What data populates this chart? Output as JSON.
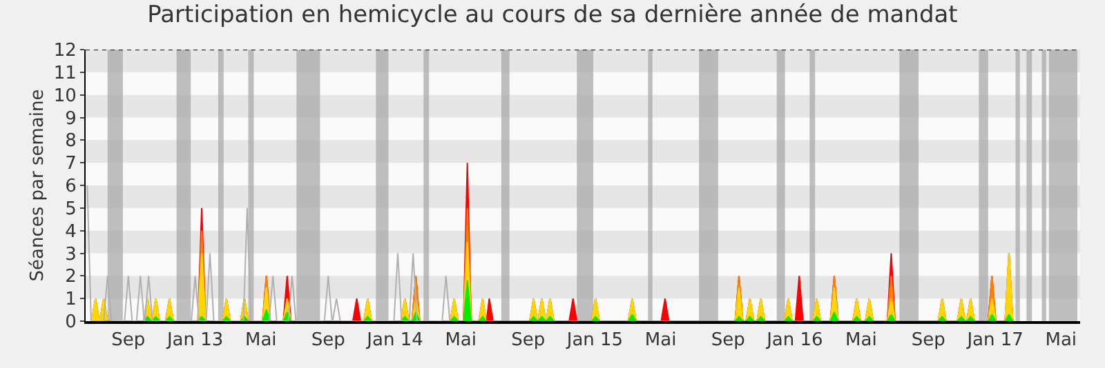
{
  "chart_data": {
    "type": "area",
    "title": "Participation en hemicycle au cours de sa dernière année de mandat",
    "ylabel": "Séances par semaine",
    "x": [
      "2012-06-26",
      "2012-07-03",
      "2012-07-10",
      "2012-07-11",
      "2012-07-18",
      "2012-07-25",
      "2012-09-29",
      "2012-10-06",
      "2012-10-13",
      "2012-10-14",
      "2012-10-21",
      "2012-10-28",
      "2012-11-08",
      "2012-11-15",
      "2012-11-22",
      "2013-01-06",
      "2013-01-13",
      "2013-01-20",
      "2013-02-20",
      "2013-02-27",
      "2013-03-06",
      "2013-03-25",
      "2013-04-01",
      "2013-04-08",
      "2013-05-04",
      "2013-05-11",
      "2013-05-18",
      "2013-06-11",
      "2013-06-18",
      "2013-06-25",
      "2013-10-16",
      "2013-10-23",
      "2013-10-30",
      "2013-11-05",
      "2013-11-12",
      "2013-11-19",
      "2014-01-12",
      "2014-01-19",
      "2014-01-26",
      "2014-02-01",
      "2014-02-08",
      "2014-02-15",
      "2014-04-12",
      "2014-04-19",
      "2014-04-26",
      "2014-05-06",
      "2014-05-13",
      "2014-05-20",
      "2014-06-03",
      "2014-06-10",
      "2014-06-16",
      "2014-06-17",
      "2014-06-22",
      "2014-06-29",
      "2014-09-04",
      "2014-09-11",
      "2014-09-18",
      "2014-09-19",
      "2014-09-26",
      "2014-10-03",
      "2014-10-04",
      "2014-10-11",
      "2014-10-18",
      "2014-11-15",
      "2014-11-22",
      "2014-11-29",
      "2014-12-26",
      "2015-01-02",
      "2015-01-09",
      "2015-03-03",
      "2015-03-10",
      "2015-03-17",
      "2015-05-02",
      "2015-05-09",
      "2015-05-16",
      "2015-09-14",
      "2015-09-21",
      "2015-09-28",
      "2015-10-04",
      "2015-10-11",
      "2015-10-18",
      "2015-10-24",
      "2015-10-31",
      "2015-11-07",
      "2015-12-13",
      "2015-12-20",
      "2015-12-27",
      "2016-01-02",
      "2016-01-09",
      "2016-01-16",
      "2016-02-03",
      "2016-02-10",
      "2016-02-17",
      "2016-03-06",
      "2016-03-13",
      "2016-03-20",
      "2016-04-16",
      "2016-04-23",
      "2016-04-30",
      "2016-05-09",
      "2016-05-16",
      "2016-05-23",
      "2016-06-18",
      "2016-06-25",
      "2016-07-02",
      "2016-09-19",
      "2016-09-26",
      "2016-10-03",
      "2016-10-24",
      "2016-10-31",
      "2016-11-07",
      "2016-11-10",
      "2016-11-17",
      "2016-11-24",
      "2016-12-19",
      "2016-12-26",
      "2017-01-02",
      "2017-01-19",
      "2017-01-26",
      "2017-02-02"
    ],
    "series": [
      {
        "color": "#ff0000",
        "values": [
          0,
          1,
          0,
          0,
          1,
          0,
          0,
          1,
          0,
          0,
          1,
          0,
          0,
          1,
          0,
          0,
          5,
          0,
          0,
          1,
          0,
          0,
          1,
          0,
          0,
          2,
          0,
          0,
          2,
          0,
          0,
          1,
          0,
          0,
          1,
          0,
          0,
          1,
          0,
          0,
          2,
          0,
          0,
          1,
          0,
          0,
          7,
          0,
          0,
          1,
          0,
          0,
          1,
          0,
          0,
          1,
          0,
          0,
          1,
          0,
          0,
          1,
          0,
          0,
          1,
          0,
          0,
          1,
          0,
          0,
          1,
          0,
          0,
          1,
          0,
          0,
          2,
          0,
          0,
          1,
          0,
          0,
          1,
          0,
          0,
          1,
          0,
          0,
          2,
          0,
          0,
          1,
          0,
          0,
          2,
          0,
          0,
          1,
          0,
          0,
          1,
          0,
          0,
          3,
          0,
          0,
          1,
          0,
          0,
          1,
          0,
          0,
          1,
          0,
          0,
          2,
          0,
          0,
          3,
          0
        ]
      },
      {
        "color": "#ff8000",
        "values": [
          0,
          1,
          0,
          0,
          1,
          0,
          0,
          1,
          0,
          0,
          1,
          0,
          0,
          1,
          0,
          0,
          4,
          0,
          0,
          1,
          0,
          0,
          1,
          0,
          0,
          2,
          0,
          0,
          1,
          0,
          0,
          0,
          0,
          0,
          1,
          0,
          0,
          1,
          0,
          0,
          2,
          0,
          0,
          1,
          0,
          0,
          5,
          0,
          0,
          1,
          0,
          0,
          0,
          0,
          0,
          1,
          0,
          0,
          1,
          0,
          0,
          1,
          0,
          0,
          0,
          0,
          0,
          1,
          0,
          0,
          1,
          0,
          0,
          0,
          0,
          0,
          2,
          0,
          0,
          1,
          0,
          0,
          1,
          0,
          0,
          1,
          0,
          0,
          0,
          0,
          0,
          1,
          0,
          0,
          2,
          0,
          0,
          1,
          0,
          0,
          1,
          0,
          0,
          2,
          0,
          0,
          1,
          0,
          0,
          1,
          0,
          0,
          1,
          0,
          0,
          2,
          0,
          0,
          3,
          0
        ]
      },
      {
        "color": "#ffd700",
        "values": [
          0,
          1,
          0,
          0,
          1,
          0,
          0,
          1,
          0,
          0,
          1,
          0,
          0,
          1,
          0,
          0,
          3,
          0,
          0,
          1,
          0,
          0,
          1,
          0,
          0,
          1.5,
          0,
          0,
          1,
          0,
          0,
          0,
          0,
          0,
          1,
          0,
          0,
          1,
          0,
          0,
          1,
          0,
          0,
          1,
          0,
          0,
          3.5,
          0,
          0,
          1,
          0,
          0,
          0,
          0,
          0,
          1,
          0,
          0,
          1,
          0,
          0,
          1,
          0,
          0,
          0,
          0,
          0,
          1,
          0,
          0,
          1,
          0,
          0,
          0,
          0,
          0,
          1.5,
          0,
          0,
          1,
          0,
          0,
          1,
          0,
          0,
          1,
          0,
          0,
          0,
          0,
          0,
          1,
          0,
          0,
          1.5,
          0,
          0,
          1,
          0,
          0,
          1,
          0,
          0,
          1,
          0,
          0,
          1,
          0,
          0,
          1,
          0,
          0,
          1,
          0,
          0,
          1,
          0,
          0,
          3,
          0
        ]
      },
      {
        "color": "#00ee00",
        "values": [
          0,
          0,
          0,
          0,
          0,
          0,
          0,
          0.2,
          0,
          0,
          0.2,
          0,
          0,
          0.2,
          0,
          0,
          0.2,
          0,
          0,
          0.2,
          0,
          0,
          0.2,
          0,
          0,
          0.5,
          0,
          0,
          0.4,
          0,
          0,
          0,
          0,
          0,
          0.2,
          0,
          0,
          0.2,
          0,
          0,
          0.4,
          0,
          0,
          0.2,
          0,
          0,
          1.8,
          0,
          0,
          0.2,
          0,
          0,
          0,
          0,
          0,
          0.2,
          0,
          0,
          0.2,
          0,
          0,
          0.2,
          0,
          0,
          0,
          0,
          0,
          0.2,
          0,
          0,
          0.3,
          0,
          0,
          0,
          0,
          0,
          0.2,
          0,
          0,
          0.2,
          0,
          0,
          0.2,
          0,
          0,
          0.2,
          0,
          0,
          0,
          0,
          0,
          0.2,
          0,
          0,
          0.4,
          0,
          0,
          0.2,
          0,
          0,
          0.2,
          0,
          0,
          0.3,
          0,
          0,
          0.2,
          0,
          0,
          0.2,
          0,
          0,
          0.2,
          0,
          0,
          0.3,
          0,
          0,
          0.3,
          0
        ]
      },
      {
        "type": "line",
        "color": "#b0b0b0",
        "x": [
          "2012-06-18",
          "2012-06-25",
          "2012-07-18",
          "2012-07-25",
          "2012-08-01",
          "2012-08-25",
          "2012-09-01",
          "2012-09-08",
          "2012-09-16",
          "2012-09-23",
          "2012-09-30",
          "2012-10-01",
          "2012-10-08",
          "2012-10-15",
          "2012-12-25",
          "2013-01-01",
          "2013-01-08",
          "2013-01-21",
          "2013-01-28",
          "2013-02-04",
          "2013-03-30",
          "2013-04-06",
          "2013-04-13",
          "2013-05-16",
          "2013-05-23",
          "2013-05-30",
          "2013-06-20",
          "2013-06-27",
          "2013-07-04",
          "2013-08-25",
          "2013-09-01",
          "2013-09-08",
          "2013-09-09",
          "2013-09-16",
          "2013-09-23",
          "2013-12-30",
          "2014-01-06",
          "2014-01-13",
          "2014-01-27",
          "2014-02-03",
          "2014-02-10",
          "2014-03-28",
          "2014-04-04",
          "2014-04-11"
        ],
        "values": [
          6,
          0,
          0,
          2,
          0,
          0,
          2,
          0,
          0,
          2,
          0,
          0,
          2,
          0,
          0,
          2,
          0,
          0,
          3,
          0,
          0,
          5,
          0,
          0,
          2,
          0,
          0,
          2,
          0,
          0,
          2,
          0,
          0,
          1,
          0,
          0,
          3,
          0,
          0,
          3,
          0,
          0,
          2,
          0
        ]
      }
    ],
    "xlim": [
      "2012-06-15",
      "2017-06-05"
    ],
    "xticks": [
      {
        "value": "2012-09-01",
        "label": "Sep"
      },
      {
        "value": "2013-01-01",
        "label": "Jan 13"
      },
      {
        "value": "2013-05-01",
        "label": "Mai"
      },
      {
        "value": "2013-09-01",
        "label": "Sep"
      },
      {
        "value": "2014-01-01",
        "label": "Jan 14"
      },
      {
        "value": "2014-05-01",
        "label": "Mai"
      },
      {
        "value": "2014-09-01",
        "label": "Sep"
      },
      {
        "value": "2015-01-01",
        "label": "Jan 15"
      },
      {
        "value": "2015-05-01",
        "label": "Mai"
      },
      {
        "value": "2015-09-01",
        "label": "Sep"
      },
      {
        "value": "2016-01-01",
        "label": "Jan 16"
      },
      {
        "value": "2016-05-01",
        "label": "Mai"
      },
      {
        "value": "2016-09-01",
        "label": "Sep"
      },
      {
        "value": "2017-01-01",
        "label": "Jan 17"
      },
      {
        "value": "2017-05-01",
        "label": "Mai"
      }
    ],
    "ylim": [
      0,
      12
    ],
    "yticks": [
      0,
      1,
      2,
      3,
      4,
      5,
      6,
      7,
      8,
      9,
      10,
      11,
      12
    ],
    "grid": false,
    "legend": false,
    "ref_lines": [
      {
        "axis": "y",
        "value": 12,
        "color": "#000000",
        "line_style": "dotted"
      }
    ],
    "bands": [
      {
        "axis": "y",
        "from": 1,
        "to": 2,
        "color": "#e6e6e6"
      },
      {
        "axis": "y",
        "from": 3,
        "to": 4,
        "color": "#e6e6e6"
      },
      {
        "axis": "y",
        "from": 5,
        "to": 6,
        "color": "#e6e6e6"
      },
      {
        "axis": "y",
        "from": 7,
        "to": 8,
        "color": "#e6e6e6"
      },
      {
        "axis": "y",
        "from": 9,
        "to": 10,
        "color": "#e6e6e6"
      },
      {
        "axis": "y",
        "from": 11,
        "to": 12,
        "color": "#e6e6e6"
      },
      {
        "axis": "x",
        "from": "2012-07-25",
        "to": "2012-08-22",
        "color": "#aaaaaa"
      },
      {
        "axis": "x",
        "from": "2012-11-28",
        "to": "2012-12-24",
        "color": "#aaaaaa"
      },
      {
        "axis": "x",
        "from": "2013-02-12",
        "to": "2013-02-22",
        "color": "#aaaaaa"
      },
      {
        "axis": "x",
        "from": "2013-04-08",
        "to": "2013-04-18",
        "color": "#aaaaaa"
      },
      {
        "axis": "x",
        "from": "2013-07-05",
        "to": "2013-08-17",
        "color": "#aaaaaa"
      },
      {
        "axis": "x",
        "from": "2013-11-27",
        "to": "2013-12-20",
        "color": "#aaaaaa"
      },
      {
        "axis": "x",
        "from": "2014-02-22",
        "to": "2014-03-04",
        "color": "#aaaaaa"
      },
      {
        "axis": "x",
        "from": "2014-07-14",
        "to": "2014-07-29",
        "color": "#aaaaaa"
      },
      {
        "axis": "x",
        "from": "2014-11-29",
        "to": "2014-12-29",
        "color": "#aaaaaa"
      },
      {
        "axis": "x",
        "from": "2015-04-08",
        "to": "2015-04-16",
        "color": "#aaaaaa"
      },
      {
        "axis": "x",
        "from": "2015-07-10",
        "to": "2015-08-14",
        "color": "#aaaaaa"
      },
      {
        "axis": "x",
        "from": "2015-11-29",
        "to": "2015-12-14",
        "color": "#aaaaaa"
      },
      {
        "axis": "x",
        "from": "2016-01-28",
        "to": "2016-02-07",
        "color": "#aaaaaa"
      },
      {
        "axis": "x",
        "from": "2016-07-10",
        "to": "2016-08-14",
        "color": "#aaaaaa"
      },
      {
        "axis": "x",
        "from": "2016-12-02",
        "to": "2016-12-19",
        "color": "#aaaaaa"
      },
      {
        "axis": "x",
        "from": "2017-02-07",
        "to": "2017-02-15",
        "color": "#aaaaaa"
      },
      {
        "axis": "x",
        "from": "2017-02-27",
        "to": "2017-03-09",
        "color": "#aaaaaa"
      },
      {
        "axis": "x",
        "from": "2017-03-27",
        "to": "2017-04-04",
        "color": "#aaaaaa"
      },
      {
        "axis": "x",
        "from": "2017-04-09",
        "to": "2017-05-31",
        "color": "#aaaaaa"
      }
    ]
  }
}
